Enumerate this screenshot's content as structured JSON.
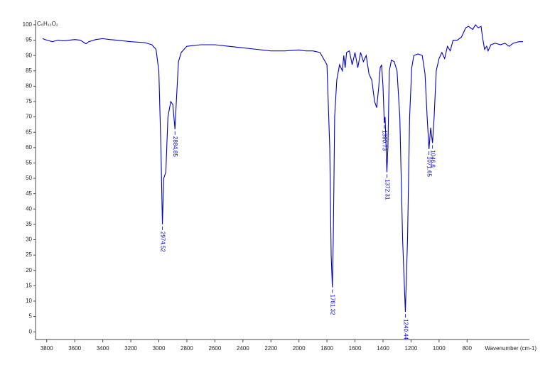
{
  "chart_data": {
    "type": "line",
    "title": "C₆H₁₂O₂",
    "x_label": "Wavenumber (cm-1)",
    "xlim": [
      3880,
      355
    ],
    "xticks": [
      3800,
      3600,
      3400,
      3200,
      3000,
      2800,
      2600,
      2400,
      2200,
      2000,
      1800,
      1600,
      1400,
      1200,
      1000,
      800
    ],
    "ylim": [
      -2.5,
      101.6
    ],
    "yticks": [
      0,
      5,
      10,
      15,
      20,
      25,
      30,
      35,
      40,
      45,
      50,
      55,
      60,
      65,
      70,
      75,
      80,
      85,
      90,
      95,
      100
    ],
    "x": [
      3830,
      3800,
      3760,
      3720,
      3680,
      3640,
      3600,
      3560,
      3520,
      3500,
      3450,
      3400,
      3350,
      3300,
      3200,
      3100,
      3050,
      3020,
      3000,
      2985,
      2974.52,
      2965,
      2950,
      2935,
      2915,
      2900,
      2884.85,
      2875,
      2860,
      2840,
      2800,
      2700,
      2600,
      2500,
      2400,
      2300,
      2200,
      2100,
      2000,
      1950,
      1900,
      1850,
      1800,
      1780,
      1770,
      1761.32,
      1755,
      1745,
      1730,
      1710,
      1690,
      1680,
      1670,
      1660,
      1640,
      1620,
      1600,
      1580,
      1560,
      1540,
      1520,
      1500,
      1480,
      1460,
      1445,
      1430,
      1420,
      1410,
      1400,
      1390.73,
      1385,
      1372.31,
      1365,
      1355,
      1340,
      1320,
      1300,
      1280,
      1260,
      1240.44,
      1225,
      1210,
      1195,
      1180,
      1150,
      1120,
      1100,
      1085,
      1071.65,
      1060,
      1046.6,
      1035,
      1020,
      1000,
      980,
      960,
      940,
      920,
      900,
      870,
      840,
      810,
      790,
      760,
      740,
      720,
      700,
      690,
      675,
      660,
      650,
      630,
      600,
      560,
      530,
      500,
      470,
      430,
      400
    ],
    "series": [
      {
        "color": "#0000cc",
        "values": [
          95.5,
          95,
          94.5,
          95,
          94.8,
          95,
          95.2,
          95,
          93.8,
          94.5,
          95.2,
          95.5,
          95.2,
          95,
          94.5,
          94.2,
          93.5,
          92,
          85,
          60,
          35,
          50,
          52,
          70,
          75,
          74,
          66,
          75,
          88,
          91,
          93,
          93.5,
          93.5,
          93,
          92.5,
          92,
          91.5,
          91.5,
          91.8,
          91.5,
          91.5,
          91,
          87,
          60,
          25,
          14.5,
          30,
          70,
          82,
          87,
          85,
          90,
          86,
          91,
          91.5,
          87,
          91,
          86,
          91,
          88,
          90,
          84,
          82,
          75,
          73,
          80,
          86,
          87,
          80,
          68,
          70,
          52,
          60,
          85,
          88.5,
          88,
          85,
          70,
          30,
          6.5,
          30,
          70,
          86,
          90,
          90.5,
          90,
          84,
          70,
          59.5,
          66.5,
          61.5,
          70,
          85,
          89,
          91,
          89,
          93,
          91.5,
          95,
          95,
          96,
          99,
          99.5,
          98.5,
          100,
          99,
          99.5,
          96,
          92,
          93,
          91.5,
          93.5,
          94,
          93.5,
          94,
          93,
          94,
          94.5,
          94.5
        ]
      }
    ],
    "annotations": [
      {
        "text": "2974.52",
        "x": 2974.52,
        "y": 35
      },
      {
        "text": "2884.85",
        "x": 2884.85,
        "y": 66
      },
      {
        "text": "1761.32",
        "x": 1761.32,
        "y": 14.5
      },
      {
        "text": "1390.73",
        "x": 1390.73,
        "y": 68
      },
      {
        "text": "1372.31",
        "x": 1372.31,
        "y": 52
      },
      {
        "text": "1240.44",
        "x": 1240.44,
        "y": 6.5
      },
      {
        "text": "1071.65",
        "x": 1071.65,
        "y": 59.5
      },
      {
        "text": "1046.6",
        "x": 1046.6,
        "y": 61.5
      }
    ]
  }
}
